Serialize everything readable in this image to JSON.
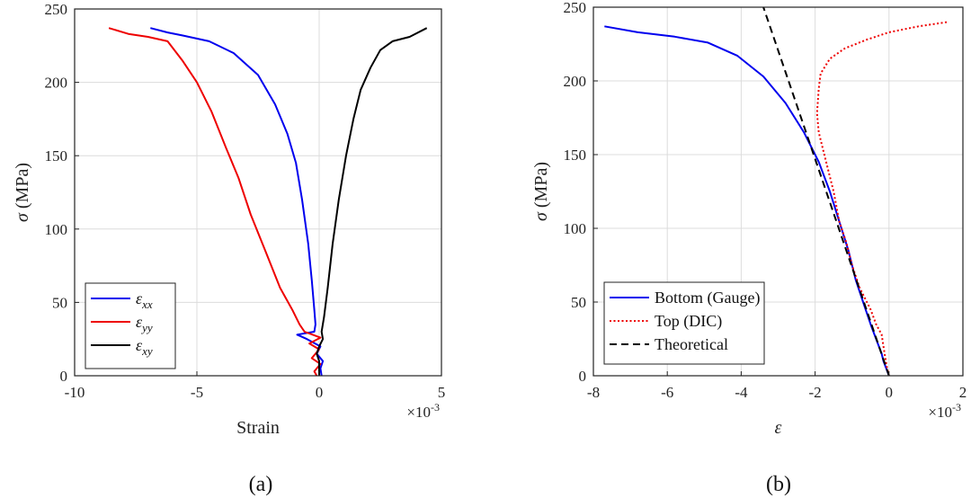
{
  "chart_data": [
    {
      "type": "line",
      "caption": "(a)",
      "xlabel": "Strain",
      "ylabel_symbol": "σ",
      "ylabel_unit": "(MPa)",
      "x_multiplier": {
        "base": "×10",
        "exp": "-3"
      },
      "xlim": [
        -10,
        5
      ],
      "ylim": [
        0,
        250
      ],
      "xticks": [
        -10,
        -5,
        0,
        5
      ],
      "yticks": [
        0,
        50,
        100,
        150,
        200,
        250
      ],
      "grid": true,
      "legend_position": "bottom-left",
      "series": [
        {
          "name": "ε",
          "sub": "xx",
          "color": "#0000ee",
          "dash": "solid",
          "points": [
            [
              0.1,
              0
            ],
            [
              0.05,
              5
            ],
            [
              0.15,
              10
            ],
            [
              -0.1,
              15
            ],
            [
              0.05,
              20
            ],
            [
              -0.5,
              25
            ],
            [
              -0.9,
              28
            ],
            [
              -0.2,
              30
            ],
            [
              -0.15,
              35
            ],
            [
              -0.2,
              45
            ],
            [
              -0.3,
              65
            ],
            [
              -0.45,
              90
            ],
            [
              -0.7,
              120
            ],
            [
              -0.95,
              145
            ],
            [
              -1.3,
              165
            ],
            [
              -1.8,
              185
            ],
            [
              -2.5,
              205
            ],
            [
              -3.5,
              220
            ],
            [
              -4.5,
              228
            ],
            [
              -5.6,
              232
            ],
            [
              -6.2,
              234
            ],
            [
              -6.9,
              237
            ]
          ]
        },
        {
          "name": "ε",
          "sub": "yy",
          "color": "#ee0000",
          "dash": "solid",
          "points": [
            [
              -0.1,
              0
            ],
            [
              -0.2,
              3
            ],
            [
              0.05,
              8
            ],
            [
              -0.3,
              12
            ],
            [
              0.0,
              18
            ],
            [
              -0.4,
              22
            ],
            [
              0.05,
              26
            ],
            [
              -0.6,
              30
            ],
            [
              -0.8,
              35
            ],
            [
              -1.1,
              45
            ],
            [
              -1.6,
              60
            ],
            [
              -2.2,
              85
            ],
            [
              -2.8,
              110
            ],
            [
              -3.3,
              135
            ],
            [
              -3.8,
              155
            ],
            [
              -4.4,
              180
            ],
            [
              -5.0,
              200
            ],
            [
              -5.6,
              215
            ],
            [
              -6.2,
              228
            ],
            [
              -7.0,
              231
            ],
            [
              -7.8,
              233
            ],
            [
              -8.6,
              237
            ]
          ]
        },
        {
          "name": "ε",
          "sub": "xy",
          "color": "#000000",
          "dash": "solid",
          "points": [
            [
              0.0,
              0
            ],
            [
              0.0,
              10
            ],
            [
              -0.1,
              15
            ],
            [
              0.0,
              20
            ],
            [
              0.15,
              25
            ],
            [
              0.1,
              30
            ],
            [
              0.2,
              40
            ],
            [
              0.35,
              60
            ],
            [
              0.55,
              90
            ],
            [
              0.8,
              120
            ],
            [
              1.1,
              150
            ],
            [
              1.4,
              175
            ],
            [
              1.7,
              195
            ],
            [
              2.1,
              210
            ],
            [
              2.5,
              222
            ],
            [
              3.0,
              228
            ],
            [
              3.7,
              231
            ],
            [
              4.4,
              237
            ]
          ]
        }
      ],
      "legend": [
        {
          "name": "ε",
          "sub": "xx"
        },
        {
          "name": "ε",
          "sub": "yy"
        },
        {
          "name": "ε",
          "sub": "xy"
        }
      ]
    },
    {
      "type": "line",
      "caption": "(b)",
      "xlabel": "ε",
      "ylabel_symbol": "σ",
      "ylabel_unit": "(MPa)",
      "x_multiplier": {
        "base": "×10",
        "exp": "-3"
      },
      "xlim": [
        -8,
        2
      ],
      "ylim": [
        0,
        250
      ],
      "xticks": [
        -8,
        -6,
        -4,
        -2,
        0,
        2
      ],
      "yticks": [
        0,
        50,
        100,
        150,
        200,
        250
      ],
      "grid": true,
      "legend_position": "bottom-left",
      "series": [
        {
          "name": "Bottom (Gauge)",
          "color": "#0000ee",
          "dash": "solid",
          "points": [
            [
              0,
              0
            ],
            [
              -0.15,
              10
            ],
            [
              -0.2,
              15
            ],
            [
              -0.35,
              25
            ],
            [
              -0.5,
              35
            ],
            [
              -0.7,
              50
            ],
            [
              -0.9,
              65
            ],
            [
              -1.1,
              85
            ],
            [
              -1.35,
              105
            ],
            [
              -1.6,
              125
            ],
            [
              -1.9,
              145
            ],
            [
              -2.3,
              165
            ],
            [
              -2.8,
              185
            ],
            [
              -3.4,
              203
            ],
            [
              -4.1,
              217
            ],
            [
              -4.9,
              226
            ],
            [
              -5.8,
              230
            ],
            [
              -6.8,
              233
            ],
            [
              -7.7,
              237
            ]
          ]
        },
        {
          "name": "Top (DIC)",
          "color": "#ee0000",
          "dash": "dotted",
          "points": [
            [
              0,
              0
            ],
            [
              -0.05,
              5
            ],
            [
              -0.1,
              12
            ],
            [
              -0.15,
              20
            ],
            [
              -0.2,
              28
            ],
            [
              -0.35,
              35
            ],
            [
              -0.5,
              45
            ],
            [
              -0.8,
              60
            ],
            [
              -1.0,
              75
            ],
            [
              -1.15,
              90
            ],
            [
              -1.35,
              105
            ],
            [
              -1.5,
              125
            ],
            [
              -1.7,
              145
            ],
            [
              -1.8,
              155
            ],
            [
              -1.9,
              165
            ],
            [
              -1.95,
              178
            ],
            [
              -1.9,
              195
            ],
            [
              -1.85,
              205
            ],
            [
              -1.6,
              215
            ],
            [
              -1.2,
              222
            ],
            [
              -0.6,
              228
            ],
            [
              0.0,
              233
            ],
            [
              0.8,
              237
            ],
            [
              1.6,
              240
            ]
          ]
        },
        {
          "name": "Theoretical",
          "color": "#000000",
          "dash": "dashed",
          "points": [
            [
              0,
              0
            ],
            [
              -3.4,
              250
            ]
          ]
        }
      ],
      "legend": [
        {
          "name": "Bottom (Gauge)"
        },
        {
          "name": "Top (DIC)"
        },
        {
          "name": "Theoretical"
        }
      ]
    }
  ]
}
